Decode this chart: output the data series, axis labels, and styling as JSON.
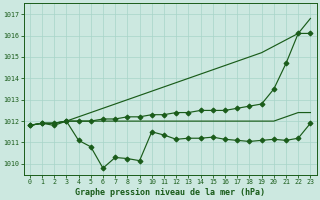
{
  "title": "Graphe pression niveau de la mer (hPa)",
  "bg_color": "#cce8e0",
  "grid_color": "#a8d4c8",
  "line_color": "#1a5c1a",
  "ylim": [
    1009.5,
    1017.5
  ],
  "yticks": [
    1010,
    1011,
    1012,
    1013,
    1014,
    1015,
    1016,
    1017
  ],
  "xlim": [
    -0.5,
    23.5
  ],
  "xticks": [
    0,
    1,
    2,
    3,
    4,
    5,
    6,
    7,
    8,
    9,
    10,
    11,
    12,
    13,
    14,
    15,
    16,
    17,
    18,
    19,
    20,
    21,
    22,
    23
  ],
  "x": [
    0,
    1,
    2,
    3,
    4,
    5,
    6,
    7,
    8,
    9,
    10,
    11,
    12,
    13,
    14,
    15,
    16,
    17,
    18,
    19,
    20,
    21,
    22,
    23
  ],
  "y_top": [
    1011.8,
    1011.9,
    1011.9,
    1012.0,
    1012.2,
    1012.4,
    1012.6,
    1012.8,
    1013.0,
    1013.2,
    1013.4,
    1013.6,
    1013.8,
    1014.0,
    1014.2,
    1014.4,
    1014.6,
    1014.8,
    1015.0,
    1015.2,
    1015.5,
    1015.8,
    1016.1,
    1016.8
  ],
  "y_upper": [
    1011.8,
    1011.9,
    1011.9,
    1012.0,
    1012.0,
    1012.0,
    1012.1,
    1012.1,
    1012.2,
    1012.2,
    1012.3,
    1012.3,
    1012.4,
    1012.4,
    1012.5,
    1012.5,
    1012.5,
    1012.6,
    1012.7,
    1012.8,
    1013.5,
    1014.7,
    1016.1,
    1016.1
  ],
  "y_lower": [
    1011.8,
    1011.9,
    1011.9,
    1012.0,
    1012.0,
    1012.0,
    1012.0,
    1012.0,
    1012.0,
    1012.0,
    1012.0,
    1012.0,
    1012.0,
    1012.0,
    1012.0,
    1012.0,
    1012.0,
    1012.0,
    1012.0,
    1012.0,
    1012.0,
    1012.2,
    1012.4,
    1012.4
  ],
  "y_min": [
    1011.8,
    1011.9,
    1011.8,
    1012.0,
    1011.1,
    1010.8,
    1009.8,
    1010.3,
    1010.25,
    1010.15,
    1011.5,
    1011.35,
    1011.15,
    1011.2,
    1011.2,
    1011.25,
    1011.15,
    1011.1,
    1011.05,
    1011.1,
    1011.15,
    1011.1,
    1011.2,
    1011.9
  ]
}
